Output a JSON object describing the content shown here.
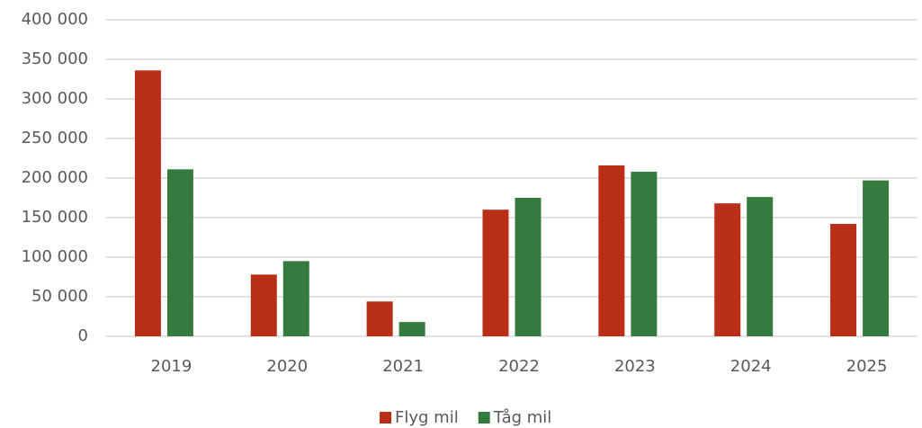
{
  "chart_data": {
    "type": "bar",
    "categories": [
      "2019",
      "2020",
      "2021",
      "2022",
      "2023",
      "2024",
      "2025"
    ],
    "series": [
      {
        "name": "Flyg mil",
        "color": "#b92e16",
        "values": [
          336000,
          78000,
          44000,
          160000,
          216000,
          168000,
          142000
        ]
      },
      {
        "name": "Tåg mil",
        "color": "#357a3e",
        "values": [
          211000,
          95000,
          18000,
          175000,
          208000,
          176000,
          197000
        ]
      }
    ],
    "ylim": [
      0,
      400000
    ],
    "yticks": [
      0,
      {
        "value": 50000,
        "label": "50 000"
      },
      {
        "value": 100000,
        "label": "100 000"
      },
      {
        "value": 150000,
        "label": "150 000"
      },
      {
        "value": 200000,
        "label": "200 000"
      },
      {
        "value": 250000,
        "label": "250 000"
      },
      {
        "value": 300000,
        "label": "300 000"
      },
      {
        "value": 350000,
        "label": "350 000"
      },
      {
        "value": 400000,
        "label": "400 000"
      }
    ],
    "grid": true,
    "legend": "bottom"
  }
}
